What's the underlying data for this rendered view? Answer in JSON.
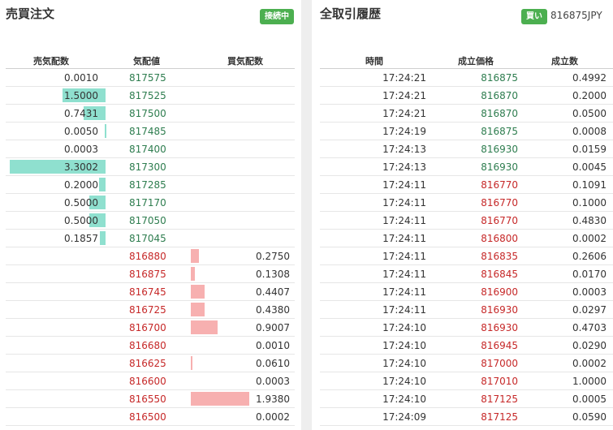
{
  "orderbook": {
    "title": "売買注文",
    "badge": "接続中",
    "headers": {
      "ask": "売気配数",
      "price": "気配値",
      "bid": "買気配数"
    },
    "asks": [
      {
        "qty": "0.0010",
        "price": "817575",
        "depth": 0.0
      },
      {
        "qty": "1.5000",
        "price": "817525",
        "depth": 0.45
      },
      {
        "qty": "0.7431",
        "price": "817500",
        "depth": 0.23
      },
      {
        "qty": "0.0050",
        "price": "817485",
        "depth": 0.01
      },
      {
        "qty": "0.0003",
        "price": "817400",
        "depth": 0.0
      },
      {
        "qty": "3.3002",
        "price": "817300",
        "depth": 1.0
      },
      {
        "qty": "0.2000",
        "price": "817285",
        "depth": 0.07
      },
      {
        "qty": "0.5000",
        "price": "817170",
        "depth": 0.17
      },
      {
        "qty": "0.5000",
        "price": "817050",
        "depth": 0.17
      },
      {
        "qty": "0.1857",
        "price": "817045",
        "depth": 0.06
      }
    ],
    "bids": [
      {
        "qty": "0.2750",
        "price": "816880",
        "depth": 0.14
      },
      {
        "qty": "0.1308",
        "price": "816875",
        "depth": 0.07
      },
      {
        "qty": "0.4407",
        "price": "816745",
        "depth": 0.23
      },
      {
        "qty": "0.4380",
        "price": "816725",
        "depth": 0.23
      },
      {
        "qty": "0.9007",
        "price": "816700",
        "depth": 0.46
      },
      {
        "qty": "0.0010",
        "price": "816680",
        "depth": 0.0
      },
      {
        "qty": "0.0610",
        "price": "816625",
        "depth": 0.03
      },
      {
        "qty": "0.0003",
        "price": "816600",
        "depth": 0.0
      },
      {
        "qty": "1.9380",
        "price": "816550",
        "depth": 1.0
      },
      {
        "qty": "0.0002",
        "price": "816500",
        "depth": 0.0
      }
    ]
  },
  "trades": {
    "title": "全取引履歴",
    "badge": "買い",
    "last_price": "816875JPY",
    "headers": {
      "time": "時間",
      "price": "成立価格",
      "qty": "成立数"
    },
    "rows": [
      {
        "time": "17:24:21",
        "price": "816875",
        "qty": "0.4992",
        "side": "buy"
      },
      {
        "time": "17:24:21",
        "price": "816870",
        "qty": "0.2000",
        "side": "buy"
      },
      {
        "time": "17:24:21",
        "price": "816870",
        "qty": "0.0500",
        "side": "buy"
      },
      {
        "time": "17:24:19",
        "price": "816875",
        "qty": "0.0008",
        "side": "buy"
      },
      {
        "time": "17:24:13",
        "price": "816930",
        "qty": "0.0159",
        "side": "buy"
      },
      {
        "time": "17:24:13",
        "price": "816930",
        "qty": "0.0045",
        "side": "buy"
      },
      {
        "time": "17:24:11",
        "price": "816770",
        "qty": "0.1091",
        "side": "sell"
      },
      {
        "time": "17:24:11",
        "price": "816770",
        "qty": "0.1000",
        "side": "sell"
      },
      {
        "time": "17:24:11",
        "price": "816770",
        "qty": "0.4830",
        "side": "sell"
      },
      {
        "time": "17:24:11",
        "price": "816800",
        "qty": "0.0002",
        "side": "sell"
      },
      {
        "time": "17:24:11",
        "price": "816835",
        "qty": "0.2606",
        "side": "sell"
      },
      {
        "time": "17:24:11",
        "price": "816845",
        "qty": "0.0170",
        "side": "sell"
      },
      {
        "time": "17:24:11",
        "price": "816900",
        "qty": "0.0003",
        "side": "sell"
      },
      {
        "time": "17:24:11",
        "price": "816930",
        "qty": "0.0297",
        "side": "sell"
      },
      {
        "time": "17:24:10",
        "price": "816930",
        "qty": "0.4703",
        "side": "sell"
      },
      {
        "time": "17:24:10",
        "price": "816945",
        "qty": "0.0290",
        "side": "sell"
      },
      {
        "time": "17:24:10",
        "price": "817000",
        "qty": "0.0002",
        "side": "sell"
      },
      {
        "time": "17:24:10",
        "price": "817010",
        "qty": "1.0000",
        "side": "sell"
      },
      {
        "time": "17:24:10",
        "price": "817125",
        "qty": "0.0005",
        "side": "sell"
      },
      {
        "time": "17:24:09",
        "price": "817125",
        "qty": "0.0590",
        "side": "sell"
      }
    ]
  },
  "colors": {
    "buy": "#2e7d4f",
    "sell": "#c62828",
    "ask_bar": "#8fe0cf",
    "bid_bar": "#f7b0b0",
    "badge": "#4caf50"
  }
}
